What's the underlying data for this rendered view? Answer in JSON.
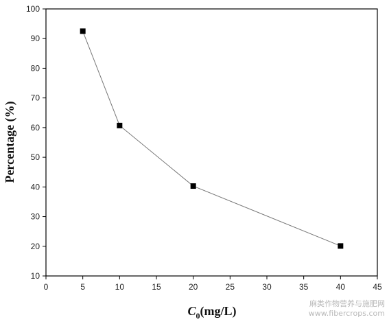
{
  "chart_data": {
    "type": "line",
    "xlabel_main": "C",
    "xlabel_sub": "0",
    "xlabel_unit": "(mg/L)",
    "ylabel": "Percentage (%)",
    "xlim": [
      0,
      45
    ],
    "ylim": [
      10,
      100
    ],
    "xticks": [
      0,
      5,
      10,
      15,
      20,
      25,
      30,
      35,
      40,
      45
    ],
    "yticks": [
      10,
      20,
      30,
      40,
      50,
      60,
      70,
      80,
      90,
      100
    ],
    "grid": false,
    "marker": "square",
    "colors": {
      "line": "#777777",
      "marker": "#000000",
      "axis": "#000000"
    },
    "series": [
      {
        "x": [
          5,
          10,
          20,
          40
        ],
        "y": [
          92.5,
          60.7,
          40.3,
          20.1
        ]
      }
    ]
  },
  "watermark": {
    "line1": "麻类作物营养与施肥网",
    "line2": "www.fibercrops.com"
  }
}
